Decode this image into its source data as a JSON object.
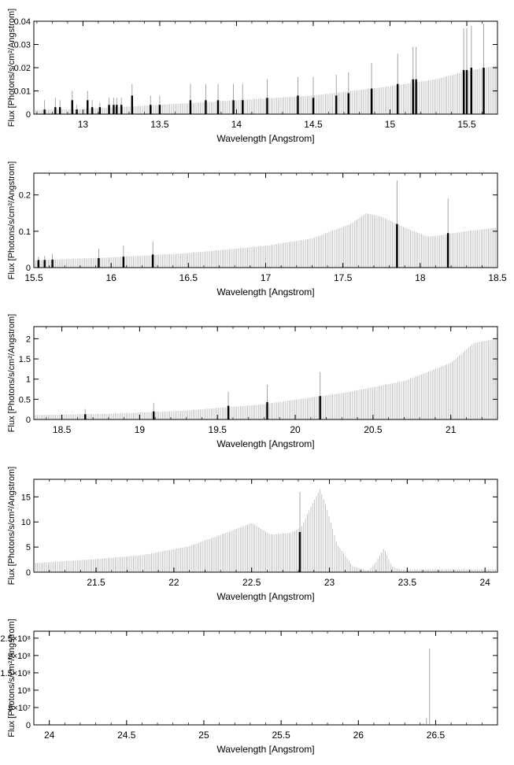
{
  "colors": {
    "continuum": "#b4b4b4",
    "lines": "#000000",
    "axis": "#000000"
  },
  "chart_data": [
    {
      "type": "bar",
      "xlabel": "Wavelength [Angstrom]",
      "ylabel": "Flux [Photons/s/cm²/Angstrom]",
      "xlim": [
        12.68,
        15.7
      ],
      "ylim": [
        0,
        0.04
      ],
      "xticks": [
        13,
        13.5,
        14,
        14.5,
        15,
        15.5
      ],
      "xtick_labels": [
        "13",
        "13.5",
        "14",
        "14.5",
        "15",
        "15.5"
      ],
      "yticks": [
        0,
        0.01,
        0.02,
        0.03,
        0.04
      ],
      "ytick_labels": [
        "0",
        "0.01",
        "0.02",
        "0.03",
        "0.04"
      ],
      "continuum": [
        [
          12.7,
          0.0018
        ],
        [
          13.0,
          0.0022
        ],
        [
          13.5,
          0.004
        ],
        [
          14.0,
          0.006
        ],
        [
          14.5,
          0.008
        ],
        [
          15.0,
          0.012
        ],
        [
          15.3,
          0.015
        ],
        [
          15.5,
          0.0185
        ],
        [
          15.7,
          0.021
        ]
      ],
      "lines": [
        [
          12.75,
          0.002,
          0.006
        ],
        [
          12.82,
          0.003,
          0.007
        ],
        [
          12.85,
          0.003,
          0.006
        ],
        [
          12.93,
          0.006,
          0.01
        ],
        [
          12.96,
          0.002,
          0.004
        ],
        [
          13.03,
          0.006,
          0.01
        ],
        [
          13.06,
          0.003,
          0.006
        ],
        [
          13.11,
          0.003,
          0.005
        ],
        [
          13.17,
          0.004,
          0.007
        ],
        [
          13.2,
          0.004,
          0.007
        ],
        [
          13.22,
          0.004,
          0.007
        ],
        [
          13.25,
          0.004,
          0.007
        ],
        [
          13.32,
          0.008,
          0.013
        ],
        [
          13.44,
          0.004,
          0.008
        ],
        [
          13.5,
          0.004,
          0.008
        ],
        [
          13.7,
          0.006,
          0.013
        ],
        [
          13.8,
          0.006,
          0.013
        ],
        [
          13.88,
          0.006,
          0.013
        ],
        [
          13.98,
          0.006,
          0.013
        ],
        [
          14.04,
          0.006,
          0.013
        ],
        [
          14.2,
          0.007,
          0.015
        ],
        [
          14.4,
          0.008,
          0.016
        ],
        [
          14.5,
          0.007,
          0.016
        ],
        [
          14.65,
          0.008,
          0.017
        ],
        [
          14.73,
          0.009,
          0.018
        ],
        [
          14.88,
          0.011,
          0.022
        ],
        [
          15.05,
          0.013,
          0.026
        ],
        [
          15.15,
          0.015,
          0.029
        ],
        [
          15.17,
          0.015,
          0.029
        ],
        [
          15.48,
          0.019,
          0.037
        ],
        [
          15.5,
          0.019,
          0.037
        ],
        [
          15.53,
          0.02,
          0.038
        ],
        [
          15.61,
          0.02,
          0.039
        ]
      ]
    },
    {
      "type": "bar",
      "xlabel": "Wavelength [Angstrom]",
      "ylabel": "Flux [Photons/s/cm²/Angstrom]",
      "xlim": [
        15.5,
        18.5
      ],
      "ylim": [
        0,
        0.26
      ],
      "xticks": [
        15.5,
        16,
        16.5,
        17,
        17.5,
        18,
        18.5
      ],
      "xtick_labels": [
        "15.5",
        "16",
        "16.5",
        "17",
        "17.5",
        "18",
        "18.5"
      ],
      "yticks": [
        0,
        0.1,
        0.2
      ],
      "ytick_labels": [
        "0",
        "0.1",
        "0.2"
      ],
      "continuum": [
        [
          15.5,
          0.02
        ],
        [
          16.0,
          0.028
        ],
        [
          16.5,
          0.04
        ],
        [
          17.0,
          0.06
        ],
        [
          17.3,
          0.08
        ],
        [
          17.55,
          0.12
        ],
        [
          17.65,
          0.15
        ],
        [
          17.75,
          0.14
        ],
        [
          17.9,
          0.11
        ],
        [
          18.05,
          0.085
        ],
        [
          18.15,
          0.09
        ],
        [
          18.3,
          0.1
        ],
        [
          18.5,
          0.11
        ]
      ],
      "lines": [
        [
          15.53,
          0.021,
          0.03
        ],
        [
          15.57,
          0.021,
          0.032
        ],
        [
          15.62,
          0.022,
          0.038
        ],
        [
          15.92,
          0.026,
          0.052
        ],
        [
          16.08,
          0.03,
          0.06
        ],
        [
          16.27,
          0.036,
          0.072
        ],
        [
          17.85,
          0.12,
          0.24
        ],
        [
          18.18,
          0.095,
          0.19
        ]
      ]
    },
    {
      "type": "bar",
      "xlabel": "Wavelength [Angstrom]",
      "ylabel": "Flux [Photons/s/cm²/Angstrom]",
      "xlim": [
        18.32,
        21.3
      ],
      "ylim": [
        0,
        2.3
      ],
      "xticks": [
        18.5,
        19,
        19.5,
        20,
        20.5,
        21
      ],
      "xtick_labels": [
        "18.5",
        "19",
        "19.5",
        "20",
        "20.5",
        "21"
      ],
      "yticks": [
        0,
        0.5,
        1,
        1.5,
        2
      ],
      "ytick_labels": [
        "0",
        "0.5",
        "1",
        "1.5",
        "2"
      ],
      "continuum": [
        [
          18.32,
          0.11
        ],
        [
          18.8,
          0.14
        ],
        [
          19.3,
          0.22
        ],
        [
          19.8,
          0.38
        ],
        [
          20.3,
          0.65
        ],
        [
          20.7,
          0.95
        ],
        [
          21.0,
          1.4
        ],
        [
          21.15,
          1.9
        ],
        [
          21.3,
          2.0
        ]
      ],
      "lines": [
        [
          18.65,
          0.13,
          0.26
        ],
        [
          19.09,
          0.2,
          0.41
        ],
        [
          19.57,
          0.34,
          0.69
        ],
        [
          19.82,
          0.43,
          0.86
        ],
        [
          20.16,
          0.58,
          1.17
        ]
      ]
    },
    {
      "type": "bar",
      "xlabel": "Wavelength [Angstrom]",
      "ylabel": "Flux [Photons/s/cm²/Angstrom]",
      "xlim": [
        21.1,
        24.08
      ],
      "ylim": [
        0,
        18.5
      ],
      "xticks": [
        21.5,
        22,
        22.5,
        23,
        23.5,
        24
      ],
      "xtick_labels": [
        "21.5",
        "22",
        "22.5",
        "23",
        "23.5",
        "24"
      ],
      "yticks": [
        0,
        5,
        10,
        15
      ],
      "ytick_labels": [
        "0",
        "5",
        "10",
        "15"
      ],
      "continuum": [
        [
          21.1,
          1.8
        ],
        [
          21.5,
          2.6
        ],
        [
          21.8,
          3.4
        ],
        [
          22.1,
          5.2
        ],
        [
          22.35,
          8.0
        ],
        [
          22.5,
          9.8
        ],
        [
          22.62,
          7.5
        ],
        [
          22.75,
          7.8
        ],
        [
          22.82,
          9.0
        ],
        [
          22.88,
          13.0
        ],
        [
          22.94,
          16.5
        ],
        [
          22.98,
          13.0
        ],
        [
          23.05,
          5.5
        ],
        [
          23.15,
          1.2
        ],
        [
          23.25,
          0.3
        ],
        [
          23.3,
          2.0
        ],
        [
          23.35,
          4.8
        ],
        [
          23.4,
          1.2
        ],
        [
          23.45,
          0.5
        ],
        [
          24.08,
          0.6
        ]
      ],
      "lines": [
        [
          22.81,
          8.0,
          16.0
        ]
      ]
    },
    {
      "type": "bar",
      "xlabel": "Wavelength [Angstrom]",
      "ylabel": "Flux [Photons/s/cm²/Angstrom]",
      "xlim": [
        23.9,
        26.9
      ],
      "ylim": [
        0,
        270000000.0
      ],
      "xticks": [
        24,
        24.5,
        25,
        25.5,
        26,
        26.5
      ],
      "xtick_labels": [
        "24",
        "24.5",
        "25",
        "25.5",
        "26",
        "26.5"
      ],
      "yticks": [
        0,
        50000000.0,
        100000000.0,
        150000000.0,
        200000000.0,
        250000000.0
      ],
      "ytick_labels": [
        "0",
        "5×10⁷",
        "10⁸",
        "1.5×10⁸",
        "2×10⁸",
        "2.5×10⁸"
      ],
      "continuum": [
        [
          24.0,
          0
        ],
        [
          26.4,
          0
        ]
      ],
      "spikes": [
        [
          26.46,
          220000000.0
        ],
        [
          26.44,
          20000000.0
        ],
        [
          26.42,
          5000000.0
        ]
      ],
      "lines": []
    }
  ]
}
